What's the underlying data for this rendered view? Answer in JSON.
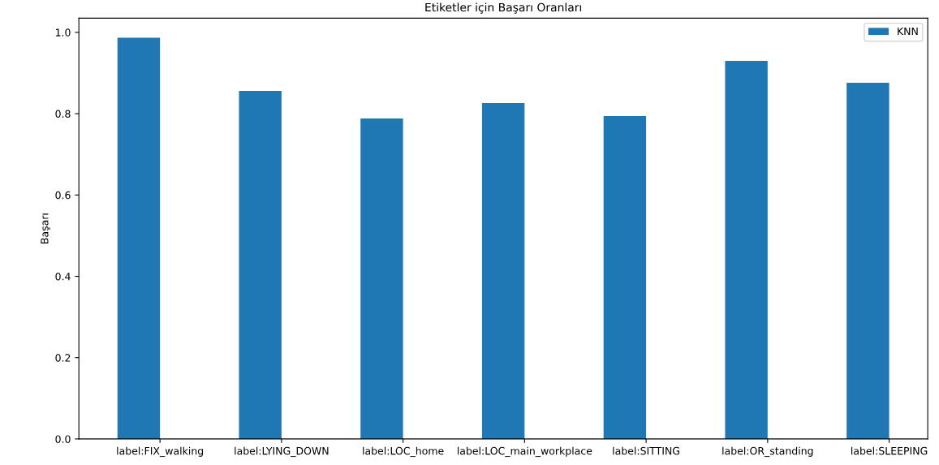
{
  "chart_data": {
    "type": "bar",
    "title": "Etiketler için Başarı Oranları",
    "ylabel": "Başarı",
    "categories": [
      "label:FIX_walking",
      "label:LYING_DOWN",
      "label:LOC_home",
      "label:LOC_main_workplace",
      "label:SITTING",
      "label:OR_standing",
      "label:SLEEPING"
    ],
    "series": [
      {
        "name": "KNN",
        "color": "#1f77b4",
        "values": [
          0.987,
          0.856,
          0.788,
          0.826,
          0.794,
          0.93,
          0.876
        ]
      }
    ],
    "ylim": [
      0,
      1.035
    ],
    "yticks": [
      {
        "value": 0,
        "label": "0.0"
      },
      0.2,
      0.4,
      0.6,
      0.8,
      {
        "value": 1,
        "label": "1.0"
      }
    ],
    "grid": false,
    "legend": "top right"
  }
}
